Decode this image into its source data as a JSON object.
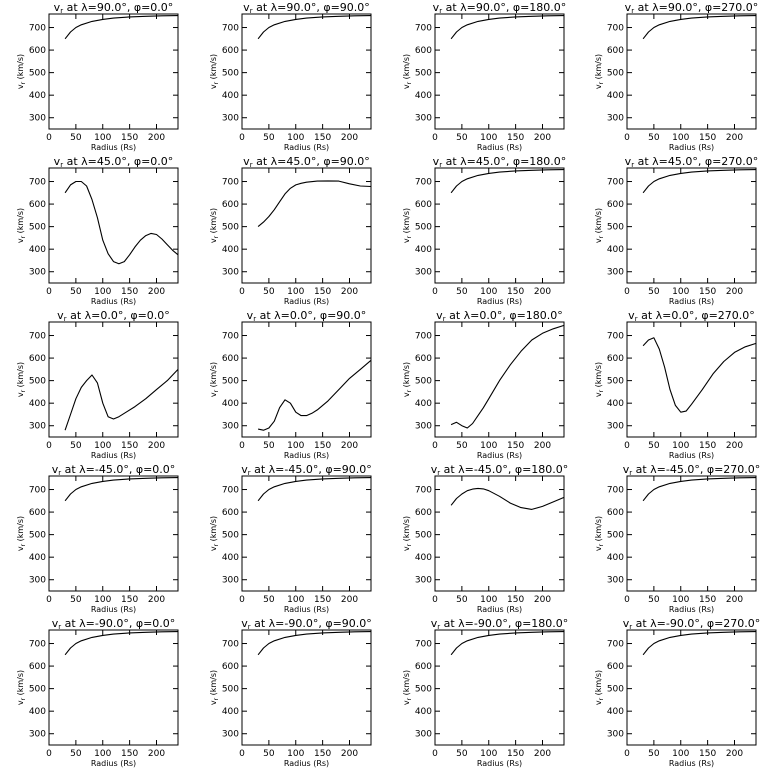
{
  "figure": {
    "xlabel": "Radius (Rs)",
    "ylabel": "v_r (km/s)",
    "xlim": [
      0,
      240
    ],
    "ylim": [
      250,
      760
    ],
    "xticks": [
      0,
      50,
      100,
      150,
      200
    ],
    "yticks": [
      300,
      400,
      500,
      600,
      700
    ],
    "grid": false,
    "legend": "none"
  },
  "chart_data": [
    {
      "type": "line",
      "title": "v_r at λ=90.0°, φ=0.0°",
      "lat": "90.0°",
      "lon": "0.0°",
      "x": [
        30,
        40,
        50,
        60,
        80,
        100,
        120,
        150,
        180,
        210,
        240
      ],
      "y": [
        650,
        680,
        700,
        712,
        727,
        736,
        742,
        747,
        750,
        752,
        753
      ]
    },
    {
      "type": "line",
      "title": "v_r at λ=90.0°, φ=90.0°",
      "lat": "90.0°",
      "lon": "90.0°",
      "x": [
        30,
        40,
        50,
        60,
        80,
        100,
        120,
        150,
        180,
        210,
        240
      ],
      "y": [
        650,
        680,
        700,
        712,
        727,
        736,
        742,
        747,
        750,
        752,
        753
      ]
    },
    {
      "type": "line",
      "title": "v_r at λ=90.0°, φ=180.0°",
      "lat": "90.0°",
      "lon": "180.0°",
      "x": [
        30,
        40,
        50,
        60,
        80,
        100,
        120,
        150,
        180,
        210,
        240
      ],
      "y": [
        650,
        680,
        700,
        712,
        727,
        736,
        742,
        747,
        750,
        752,
        753
      ]
    },
    {
      "type": "line",
      "title": "v_r at λ=90.0°, φ=270.0°",
      "lat": "90.0°",
      "lon": "270.0°",
      "x": [
        30,
        40,
        50,
        60,
        80,
        100,
        120,
        150,
        180,
        210,
        240
      ],
      "y": [
        650,
        680,
        700,
        712,
        727,
        736,
        742,
        747,
        750,
        752,
        753
      ]
    },
    {
      "type": "line",
      "title": "v_r at λ=45.0°, φ=0.0°",
      "lat": "45.0°",
      "lon": "0.0°",
      "x": [
        30,
        40,
        50,
        60,
        70,
        80,
        90,
        100,
        110,
        120,
        130,
        140,
        150,
        160,
        170,
        180,
        190,
        200,
        210,
        220,
        230,
        240
      ],
      "y": [
        650,
        685,
        700,
        700,
        680,
        620,
        540,
        440,
        380,
        345,
        335,
        345,
        375,
        410,
        440,
        460,
        470,
        465,
        445,
        420,
        395,
        375
      ]
    },
    {
      "type": "line",
      "title": "v_r at λ=45.0°, φ=90.0°",
      "lat": "45.0°",
      "lon": "90.0°",
      "x": [
        30,
        40,
        50,
        60,
        70,
        80,
        90,
        100,
        110,
        120,
        140,
        160,
        180,
        200,
        220,
        240
      ],
      "y": [
        500,
        520,
        545,
        575,
        610,
        645,
        670,
        685,
        692,
        697,
        702,
        703,
        702,
        690,
        680,
        678
      ]
    },
    {
      "type": "line",
      "title": "v_r at λ=45.0°, φ=180.0°",
      "lat": "45.0°",
      "lon": "180.0°",
      "x": [
        30,
        40,
        50,
        60,
        80,
        100,
        120,
        150,
        180,
        210,
        240
      ],
      "y": [
        650,
        680,
        700,
        712,
        727,
        736,
        742,
        747,
        750,
        752,
        753
      ]
    },
    {
      "type": "line",
      "title": "v_r at λ=45.0°, φ=270.0°",
      "lat": "45.0°",
      "lon": "270.0°",
      "x": [
        30,
        40,
        50,
        60,
        80,
        100,
        120,
        150,
        180,
        210,
        240
      ],
      "y": [
        650,
        680,
        700,
        712,
        727,
        736,
        742,
        747,
        750,
        752,
        753
      ]
    },
    {
      "type": "line",
      "title": "v_r at λ=0.0°, φ=0.0°",
      "lat": "0.0°",
      "lon": "0.0°",
      "x": [
        30,
        40,
        50,
        60,
        70,
        80,
        90,
        100,
        110,
        120,
        130,
        140,
        160,
        180,
        200,
        220,
        240
      ],
      "y": [
        280,
        350,
        420,
        470,
        500,
        525,
        490,
        400,
        340,
        330,
        340,
        355,
        385,
        420,
        460,
        500,
        550
      ]
    },
    {
      "type": "line",
      "title": "v_r at λ=0.0°, φ=90.0°",
      "lat": "0.0°",
      "lon": "90.0°",
      "x": [
        30,
        40,
        50,
        60,
        70,
        80,
        90,
        100,
        110,
        120,
        130,
        140,
        160,
        180,
        200,
        220,
        240
      ],
      "y": [
        285,
        280,
        290,
        320,
        380,
        415,
        400,
        360,
        345,
        345,
        355,
        370,
        410,
        460,
        510,
        550,
        590
      ]
    },
    {
      "type": "line",
      "title": "v_r at λ=0.0°, φ=180.0°",
      "lat": "0.0°",
      "lon": "180.0°",
      "x": [
        30,
        40,
        50,
        60,
        70,
        80,
        90,
        100,
        120,
        140,
        160,
        180,
        200,
        220,
        240
      ],
      "y": [
        305,
        315,
        300,
        290,
        310,
        345,
        380,
        420,
        500,
        570,
        630,
        680,
        710,
        730,
        745
      ]
    },
    {
      "type": "line",
      "title": "v_r at λ=0.0°, φ=270.0°",
      "lat": "0.0°",
      "lon": "270.0°",
      "x": [
        30,
        40,
        50,
        60,
        70,
        80,
        90,
        100,
        110,
        120,
        140,
        160,
        180,
        200,
        220,
        240
      ],
      "y": [
        655,
        680,
        690,
        640,
        560,
        460,
        390,
        360,
        365,
        395,
        460,
        530,
        585,
        625,
        650,
        665
      ]
    },
    {
      "type": "line",
      "title": "v_r at λ=-45.0°, φ=0.0°",
      "lat": "-45.0°",
      "lon": "0.0°",
      "x": [
        30,
        40,
        50,
        60,
        80,
        100,
        120,
        150,
        180,
        210,
        240
      ],
      "y": [
        650,
        680,
        700,
        712,
        727,
        736,
        742,
        747,
        750,
        752,
        753
      ]
    },
    {
      "type": "line",
      "title": "v_r at λ=-45.0°, φ=90.0°",
      "lat": "-45.0°",
      "lon": "90.0°",
      "x": [
        30,
        40,
        50,
        60,
        80,
        100,
        120,
        150,
        180,
        210,
        240
      ],
      "y": [
        650,
        680,
        700,
        712,
        727,
        736,
        742,
        747,
        750,
        752,
        753
      ]
    },
    {
      "type": "line",
      "title": "v_r at λ=-45.0°, φ=180.0°",
      "lat": "-45.0°",
      "lon": "180.0°",
      "x": [
        30,
        40,
        50,
        60,
        70,
        80,
        90,
        100,
        120,
        140,
        160,
        180,
        200,
        220,
        240
      ],
      "y": [
        630,
        660,
        680,
        695,
        702,
        705,
        703,
        695,
        670,
        640,
        620,
        612,
        625,
        645,
        665
      ]
    },
    {
      "type": "line",
      "title": "v_r at λ=-45.0°, φ=270.0°",
      "lat": "-45.0°",
      "lon": "270.0°",
      "x": [
        30,
        40,
        50,
        60,
        80,
        100,
        120,
        150,
        180,
        210,
        240
      ],
      "y": [
        650,
        680,
        700,
        712,
        727,
        736,
        742,
        747,
        750,
        752,
        753
      ]
    },
    {
      "type": "line",
      "title": "v_r at λ=-90.0°, φ=0.0°",
      "lat": "-90.0°",
      "lon": "0.0°",
      "x": [
        30,
        40,
        50,
        60,
        80,
        100,
        120,
        150,
        180,
        210,
        240
      ],
      "y": [
        650,
        680,
        700,
        712,
        727,
        736,
        742,
        747,
        750,
        752,
        753
      ]
    },
    {
      "type": "line",
      "title": "v_r at λ=-90.0°, φ=90.0°",
      "lat": "-90.0°",
      "lon": "90.0°",
      "x": [
        30,
        40,
        50,
        60,
        80,
        100,
        120,
        150,
        180,
        210,
        240
      ],
      "y": [
        650,
        680,
        700,
        712,
        727,
        736,
        742,
        747,
        750,
        752,
        753
      ]
    },
    {
      "type": "line",
      "title": "v_r at λ=-90.0°, φ=180.0°",
      "lat": "-90.0°",
      "lon": "180.0°",
      "x": [
        30,
        40,
        50,
        60,
        80,
        100,
        120,
        150,
        180,
        210,
        240
      ],
      "y": [
        650,
        680,
        700,
        712,
        727,
        736,
        742,
        747,
        750,
        752,
        753
      ]
    },
    {
      "type": "line",
      "title": "v_r at λ=-90.0°, φ=270.0°",
      "lat": "-90.0°",
      "lon": "270.0°",
      "x": [
        30,
        40,
        50,
        60,
        80,
        100,
        120,
        150,
        180,
        210,
        240
      ],
      "y": [
        650,
        680,
        700,
        712,
        727,
        736,
        742,
        747,
        750,
        752,
        753
      ]
    }
  ]
}
